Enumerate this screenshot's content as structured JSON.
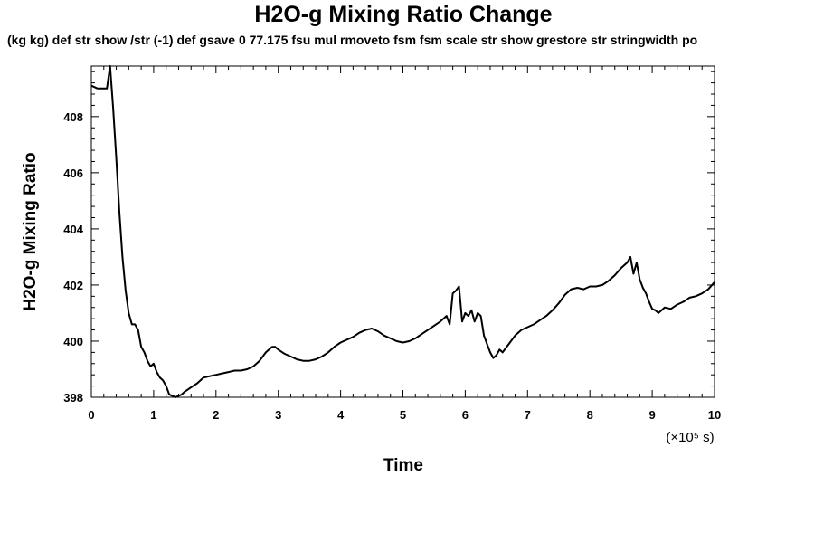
{
  "chart_data": {
    "type": "line",
    "title": "H2O-g Mixing Ratio Change",
    "subtitle": "(kg kg) def str show /str (-1) def gsave 0 77.175 fsu mul rmoveto fsm fsm scale str show grestore str stringwidth po",
    "xlabel": "Time",
    "ylabel": "H2O-g Mixing Ratio",
    "x_unit_label": "(×10⁵ s)",
    "xlim": [
      0,
      10
    ],
    "ylim": [
      398,
      409.8
    ],
    "x_ticks": [
      "0",
      "1",
      "2",
      "3",
      "4",
      "5",
      "6",
      "7",
      "8",
      "9",
      "10"
    ],
    "y_ticks": [
      "398",
      "400",
      "402",
      "404",
      "406",
      "408"
    ],
    "grid": false,
    "line_color": "#000000",
    "series": [
      {
        "x": [
          0,
          0.1,
          0.25,
          0.3,
          0.35,
          0.4,
          0.45,
          0.5,
          0.55,
          0.6,
          0.65,
          0.7,
          0.75,
          0.8,
          0.85,
          0.9,
          0.95,
          1.0,
          1.05,
          1.1,
          1.15,
          1.2,
          1.25,
          1.3,
          1.35,
          1.4,
          1.45,
          1.5,
          1.6,
          1.7,
          1.8,
          1.9,
          2.0,
          2.1,
          2.2,
          2.3,
          2.4,
          2.5,
          2.6,
          2.7,
          2.8,
          2.9,
          2.95,
          3.0,
          3.1,
          3.2,
          3.3,
          3.4,
          3.5,
          3.6,
          3.7,
          3.8,
          3.9,
          4.0,
          4.1,
          4.2,
          4.3,
          4.4,
          4.5,
          4.6,
          4.7,
          4.8,
          4.9,
          5.0,
          5.1,
          5.2,
          5.3,
          5.4,
          5.5,
          5.6,
          5.7,
          5.75,
          5.8,
          5.85,
          5.9,
          5.95,
          6.0,
          6.05,
          6.1,
          6.15,
          6.2,
          6.25,
          6.3,
          6.35,
          6.4,
          6.45,
          6.5,
          6.55,
          6.6,
          6.7,
          6.8,
          6.9,
          7.0,
          7.1,
          7.2,
          7.3,
          7.4,
          7.5,
          7.6,
          7.7,
          7.8,
          7.9,
          8.0,
          8.1,
          8.2,
          8.3,
          8.4,
          8.5,
          8.6,
          8.65,
          8.7,
          8.75,
          8.8,
          8.85,
          8.9,
          8.95,
          9.0,
          9.05,
          9.1,
          9.2,
          9.3,
          9.4,
          9.5,
          9.6,
          9.7,
          9.8,
          9.9,
          10.0
        ],
        "y": [
          409.1,
          409.0,
          409.0,
          409.8,
          408.3,
          406.5,
          404.6,
          403.0,
          401.8,
          401.0,
          400.6,
          400.6,
          400.4,
          399.8,
          399.6,
          399.3,
          399.1,
          399.2,
          398.9,
          398.7,
          398.6,
          398.4,
          398.1,
          398.05,
          398.0,
          398.05,
          398.1,
          398.2,
          398.35,
          398.5,
          398.7,
          398.75,
          398.8,
          398.85,
          398.9,
          398.95,
          398.95,
          399.0,
          399.1,
          399.3,
          399.6,
          399.8,
          399.8,
          399.7,
          399.55,
          399.45,
          399.35,
          399.3,
          399.3,
          399.35,
          399.45,
          399.6,
          399.8,
          399.95,
          400.05,
          400.15,
          400.3,
          400.4,
          400.45,
          400.35,
          400.2,
          400.1,
          400.0,
          399.95,
          400.0,
          400.1,
          400.25,
          400.4,
          400.55,
          400.7,
          400.9,
          400.6,
          401.7,
          401.8,
          401.95,
          400.7,
          401.0,
          400.9,
          401.1,
          400.7,
          401.0,
          400.9,
          400.2,
          399.9,
          399.6,
          399.4,
          399.5,
          399.7,
          399.6,
          399.9,
          400.2,
          400.4,
          400.5,
          400.6,
          400.75,
          400.9,
          401.1,
          401.35,
          401.65,
          401.85,
          401.9,
          401.85,
          401.95,
          401.95,
          402.0,
          402.15,
          402.35,
          402.6,
          402.8,
          403.0,
          402.4,
          402.8,
          402.2,
          401.9,
          401.7,
          401.4,
          401.15,
          401.1,
          401.0,
          401.2,
          401.15,
          401.3,
          401.4,
          401.55,
          401.6,
          401.7,
          401.85,
          402.1
        ]
      }
    ]
  }
}
